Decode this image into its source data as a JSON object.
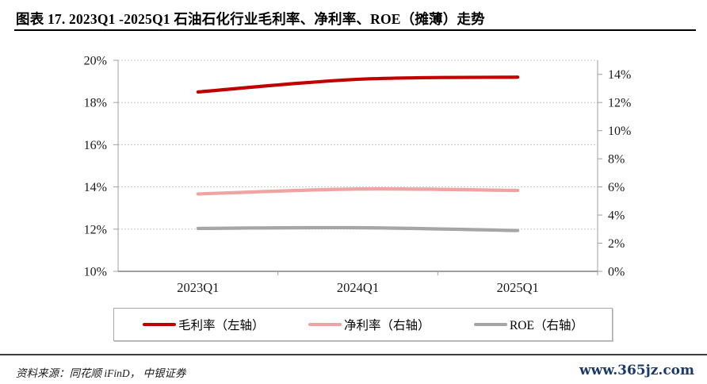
{
  "header": {
    "title": "图表 17. 2023Q1 -2025Q1 石油石化行业毛利率、净利率、ROE（摊薄）走势"
  },
  "footer": {
    "source": "资料来源：同花顺 iFinD，  中银证券",
    "site": "www.365jz.com"
  },
  "colors": {
    "gross_margin": "#c00000",
    "net_margin": "#f0a3a3",
    "roe": "#a6a6a6",
    "gridline": "#c8c8c8",
    "axis_line": "#a0a0a0",
    "baseline": "#808080",
    "tick_text": "#1a1a1a",
    "link_blue": "#1b3a6b"
  },
  "chart_data": {
    "type": "line",
    "categories": [
      "2023Q1",
      "2024Q1",
      "2025Q1"
    ],
    "series": [
      {
        "key": "gross-margin",
        "name": "毛利率（左轴）",
        "axis": "left",
        "color": "#c00000",
        "values": [
          18.5,
          19.1,
          19.2
        ]
      },
      {
        "key": "net-margin",
        "name": "净利率（右轴）",
        "axis": "right",
        "color": "#f0a3a3",
        "values": [
          5.5,
          5.85,
          5.75
        ]
      },
      {
        "key": "roe",
        "name": "ROE（右轴）",
        "axis": "right",
        "color": "#a6a6a6",
        "values": [
          3.05,
          3.1,
          2.9
        ]
      }
    ],
    "left_axis": {
      "min": 10,
      "max": 20,
      "step": 2,
      "tick_labels": [
        "10%",
        "12%",
        "14%",
        "16%",
        "18%",
        "20%"
      ]
    },
    "right_axis": {
      "min": 0,
      "max": 14,
      "step": 2,
      "plot_top_value": 15,
      "tick_labels": [
        "0%",
        "2%",
        "4%",
        "6%",
        "8%",
        "10%",
        "12%",
        "14%"
      ]
    },
    "grid": true,
    "legend_position": "bottom"
  }
}
